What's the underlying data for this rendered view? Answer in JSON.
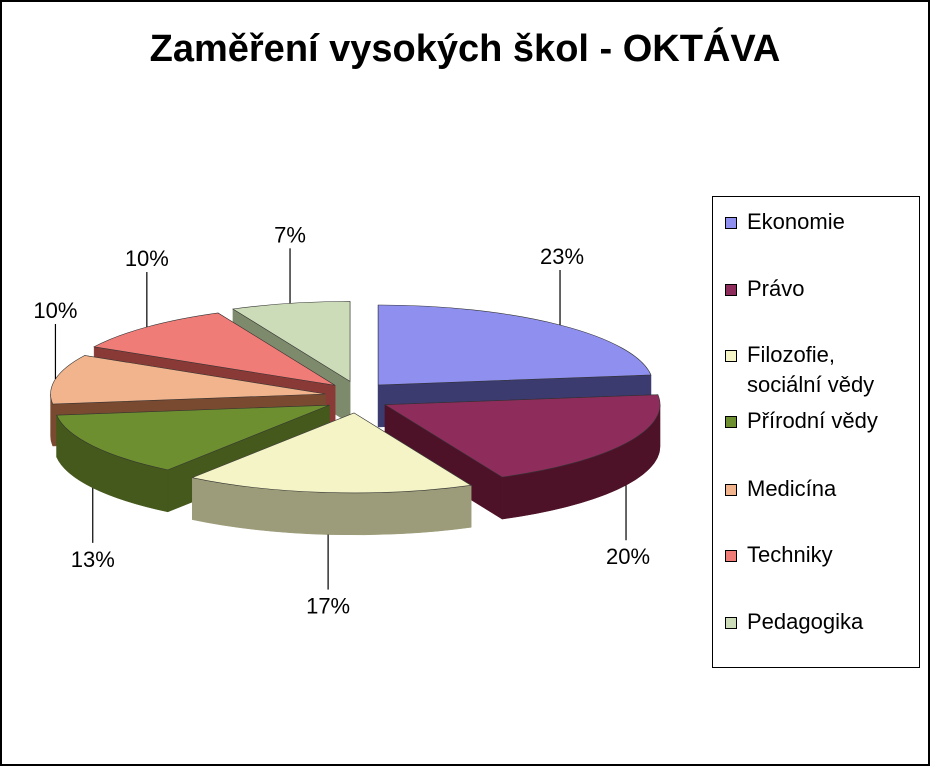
{
  "chart_data": {
    "type": "pie",
    "title": "Zaměření vysokých škol - OKTÁVA",
    "legend_position": "right",
    "slices": [
      {
        "label": "Ekonomie",
        "label_lines": [
          "Ekonomie"
        ],
        "value": 23,
        "value_label": "23%",
        "color": "#8F8FF0",
        "side_color": "#3B3B70"
      },
      {
        "label": "Právo",
        "label_lines": [
          "Právo"
        ],
        "value": 20,
        "value_label": "20%",
        "color": "#8E2D5C",
        "side_color": "#4E1228"
      },
      {
        "label": "Filozofie, sociální vědy",
        "label_lines": [
          "Filozofie,",
          "sociální vědy"
        ],
        "value": 17,
        "value_label": "17%",
        "color": "#F4F4C6",
        "side_color": "#9C9C7A"
      },
      {
        "label": "Přírodní vědy",
        "label_lines": [
          "Přírodní vědy"
        ],
        "value": 13,
        "value_label": "13%",
        "color": "#6E8F2F",
        "side_color": "#45591C"
      },
      {
        "label": "Medicína",
        "label_lines": [
          "Medicína"
        ],
        "value": 10,
        "value_label": "10%",
        "color": "#F2B48C",
        "side_color": "#7A4A30"
      },
      {
        "label": "Techniky",
        "label_lines": [
          "Techniky"
        ],
        "value": 10,
        "value_label": "10%",
        "color": "#F07C78",
        "side_color": "#8A3A36"
      },
      {
        "label": "Pedagogika",
        "label_lines": [
          "Pedagogika"
        ],
        "value": 7,
        "value_label": "7%",
        "color": "#CDDCB8",
        "side_color": "#7E8A6C"
      }
    ]
  }
}
